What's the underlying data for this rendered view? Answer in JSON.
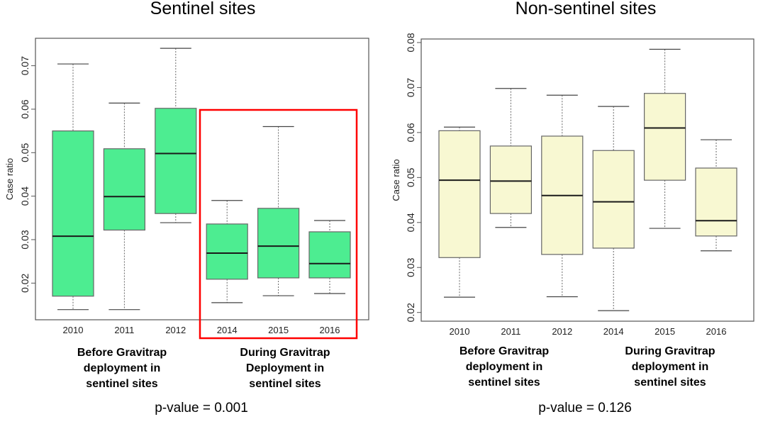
{
  "chart_data": [
    {
      "type": "boxplot",
      "title": "Sentinel sites",
      "ylabel": "Case ratio",
      "yticks": [
        "0.02",
        "0.03",
        "0.04",
        "0.05",
        "0.06",
        "0.07"
      ],
      "categories": [
        "2010",
        "2011",
        "2012",
        "2014",
        "2015",
        "2016"
      ],
      "fill_color": "#4DED91",
      "highlight_color": "#FF0000",
      "highlighted_categories": [
        "2014",
        "2015",
        "2016"
      ],
      "boxes": [
        {
          "min": 0.0139,
          "q1": 0.017,
          "median": 0.0308,
          "q3": 0.055,
          "max": 0.0704
        },
        {
          "min": 0.0139,
          "q1": 0.0322,
          "median": 0.0399,
          "q3": 0.0509,
          "max": 0.0614
        },
        {
          "min": 0.0339,
          "q1": 0.036,
          "median": 0.0498,
          "q3": 0.0602,
          "max": 0.074
        },
        {
          "min": 0.0155,
          "q1": 0.0209,
          "median": 0.0269,
          "q3": 0.0336,
          "max": 0.039
        },
        {
          "min": 0.0171,
          "q1": 0.0212,
          "median": 0.0285,
          "q3": 0.0372,
          "max": 0.056
        },
        {
          "min": 0.0176,
          "q1": 0.0212,
          "median": 0.0245,
          "q3": 0.0318,
          "max": 0.0344
        }
      ],
      "group_labels": [
        "Before Gravitrap\ndeployment  in\nsentinel sites",
        "During Gravitrap\nDeployment  in\nsentinel sites"
      ],
      "p_value": "p-value = 0.001"
    },
    {
      "type": "boxplot",
      "title": "Non-sentinel sites",
      "ylabel": "Case ratio",
      "yticks": [
        "0.02",
        "0.03",
        "0.04",
        "0.05",
        "0.06",
        "0.07",
        "0.08"
      ],
      "categories": [
        "2010",
        "2011",
        "2012",
        "2014",
        "2015",
        "2016"
      ],
      "fill_color": "#F8F8D2",
      "boxes": [
        {
          "min": 0.0234,
          "q1": 0.0322,
          "median": 0.0494,
          "q3": 0.0604,
          "max": 0.0612
        },
        {
          "min": 0.0389,
          "q1": 0.042,
          "median": 0.0492,
          "q3": 0.057,
          "max": 0.0698
        },
        {
          "min": 0.0235,
          "q1": 0.0329,
          "median": 0.046,
          "q3": 0.0592,
          "max": 0.0683
        },
        {
          "min": 0.0204,
          "q1": 0.0343,
          "median": 0.0446,
          "q3": 0.056,
          "max": 0.0658
        },
        {
          "min": 0.0387,
          "q1": 0.0494,
          "median": 0.061,
          "q3": 0.0687,
          "max": 0.0785
        },
        {
          "min": 0.0337,
          "q1": 0.037,
          "median": 0.0404,
          "q3": 0.0521,
          "max": 0.0584
        }
      ],
      "group_labels": [
        "Before Gravitrap\ndeployment  in\nsentinel sites",
        "During Gravitrap\ndeployment  in\nsentinel sites"
      ],
      "p_value": "p-value = 0.126"
    }
  ]
}
